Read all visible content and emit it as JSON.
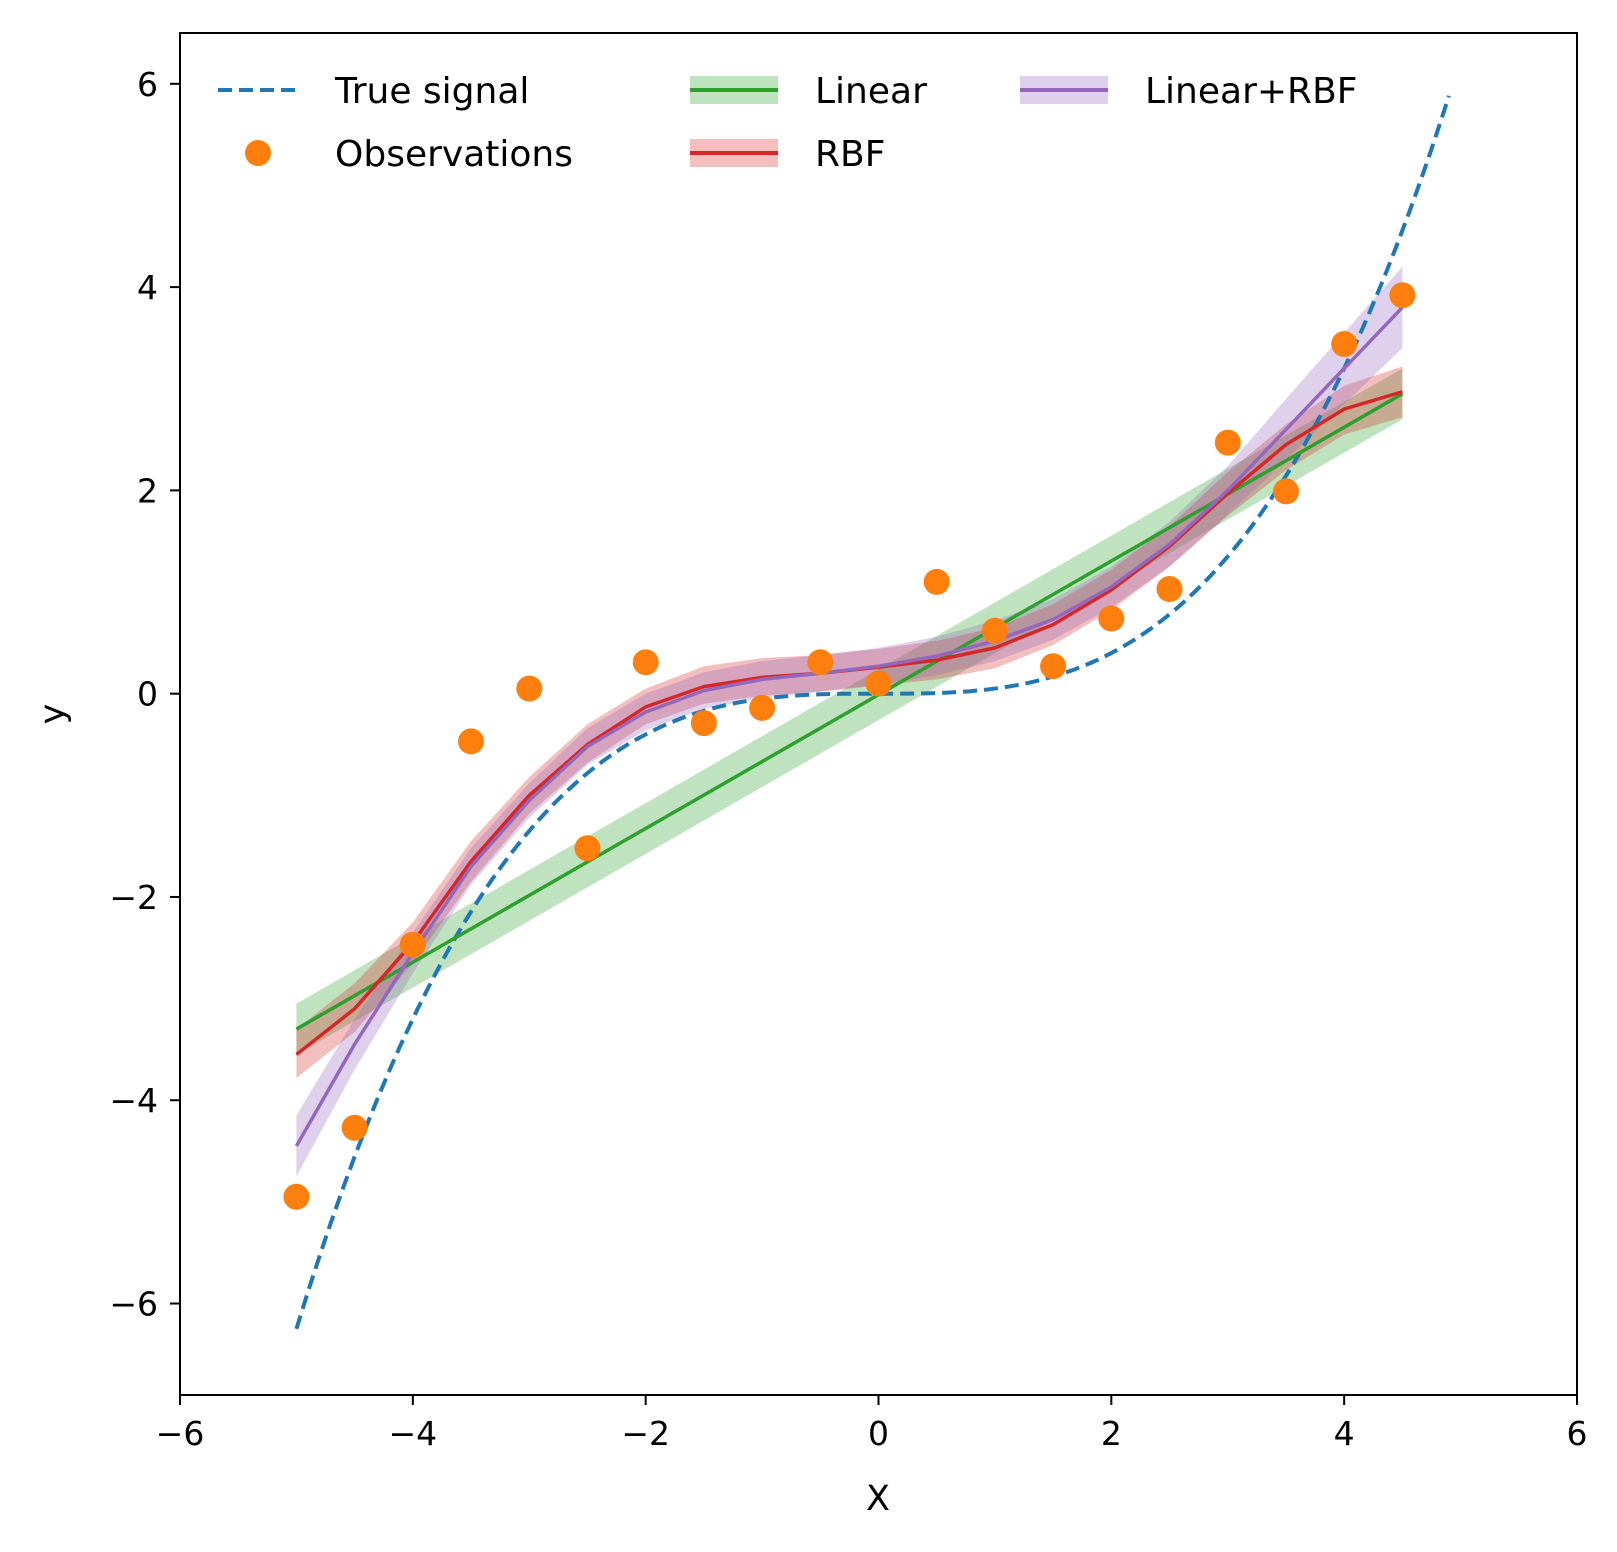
{
  "chart_data": {
    "type": "line",
    "xlabel": "X",
    "ylabel": "y",
    "xlim": [
      -6,
      6
    ],
    "ylim": [
      -6.9,
      6.5
    ],
    "xticks": [
      -6,
      -4,
      -2,
      0,
      2,
      4,
      6
    ],
    "xtick_labels": [
      "−6",
      "−4",
      "−2",
      "0",
      "2",
      "4",
      "6"
    ],
    "yticks": [
      -6,
      -4,
      -2,
      0,
      2,
      4,
      6
    ],
    "ytick_labels": [
      "−6",
      "−4",
      "−2",
      "0",
      "2",
      "4",
      "6"
    ],
    "grid": false,
    "legend": {
      "position": "top-left",
      "columns": 3,
      "entries": [
        "True signal",
        "Observations",
        "Linear",
        "RBF",
        "Linear+RBF"
      ]
    },
    "colors": {
      "true_signal": "#1f77b4",
      "observations": "#ff7f0e",
      "linear": "#2ca02c",
      "rbf": "#d62728",
      "linear_rbf": "#9467bd"
    },
    "true_signal": {
      "name": "True signal",
      "x_range": [
        -5,
        4.9
      ],
      "function": "0.05*x^3"
    },
    "observations": {
      "name": "Observations",
      "x": [
        -5,
        -4.5,
        -4,
        -3.5,
        -3,
        -2.5,
        -2,
        -1.5,
        -1,
        -0.5,
        0,
        0.5,
        1,
        1.5,
        2,
        2.5,
        3,
        3.5,
        4,
        4.5
      ],
      "y": [
        -4.95,
        -4.27,
        -2.47,
        -0.47,
        0.05,
        -1.52,
        0.31,
        -0.29,
        -0.14,
        0.31,
        0.1,
        1.1,
        0.62,
        0.27,
        0.74,
        1.03,
        2.47,
        1.99,
        3.44,
        3.92
      ]
    },
    "series": [
      {
        "name": "Linear",
        "x": [
          -5,
          4.5
        ],
        "y": [
          -3.3,
          2.95
        ],
        "lower": [
          -3.55,
          2.7
        ],
        "upper": [
          -3.05,
          3.2
        ]
      },
      {
        "name": "RBF",
        "x": [
          -5,
          -4.5,
          -4,
          -3.5,
          -3,
          -2.5,
          -2,
          -1.5,
          -1,
          -0.5,
          0,
          0.5,
          1,
          1.5,
          2,
          2.5,
          3,
          3.5,
          4,
          4.5
        ],
        "y": [
          -3.55,
          -3.1,
          -2.45,
          -1.65,
          -1.0,
          -0.5,
          -0.13,
          0.07,
          0.16,
          0.2,
          0.26,
          0.33,
          0.45,
          0.68,
          1.02,
          1.45,
          1.97,
          2.45,
          2.8,
          2.97
        ],
        "lower": [
          -3.78,
          -3.33,
          -2.65,
          -1.85,
          -1.18,
          -0.68,
          -0.3,
          -0.1,
          -0.02,
          0.02,
          0.08,
          0.14,
          0.25,
          0.48,
          0.82,
          1.25,
          1.75,
          2.2,
          2.55,
          2.72
        ],
        "upper": [
          -3.3,
          -2.85,
          -2.25,
          -1.45,
          -0.82,
          -0.3,
          0.05,
          0.27,
          0.35,
          0.38,
          0.44,
          0.52,
          0.65,
          0.88,
          1.22,
          1.65,
          2.18,
          2.65,
          3.03,
          3.22
        ]
      },
      {
        "name": "Linear+RBF",
        "x": [
          -5,
          -4.5,
          -4,
          -3.5,
          -3,
          -2.5,
          -2,
          -1.5,
          -1,
          -0.5,
          0,
          0.5,
          1,
          1.5,
          2,
          2.5,
          3,
          3.5,
          4,
          4.5
        ],
        "y": [
          -4.45,
          -3.45,
          -2.55,
          -1.7,
          -1.05,
          -0.52,
          -0.18,
          0.03,
          0.14,
          0.2,
          0.27,
          0.37,
          0.52,
          0.73,
          1.05,
          1.47,
          2.0,
          2.6,
          3.2,
          3.8
        ],
        "lower": [
          -4.75,
          -3.7,
          -2.75,
          -1.88,
          -1.22,
          -0.7,
          -0.36,
          -0.15,
          -0.04,
          0.02,
          0.09,
          0.18,
          0.32,
          0.53,
          0.85,
          1.25,
          1.76,
          2.3,
          2.85,
          3.4
        ],
        "upper": [
          -4.15,
          -3.2,
          -2.35,
          -1.52,
          -0.88,
          -0.34,
          0.0,
          0.21,
          0.32,
          0.38,
          0.45,
          0.56,
          0.72,
          0.93,
          1.25,
          1.69,
          2.24,
          2.9,
          3.55,
          4.2
        ]
      }
    ]
  }
}
